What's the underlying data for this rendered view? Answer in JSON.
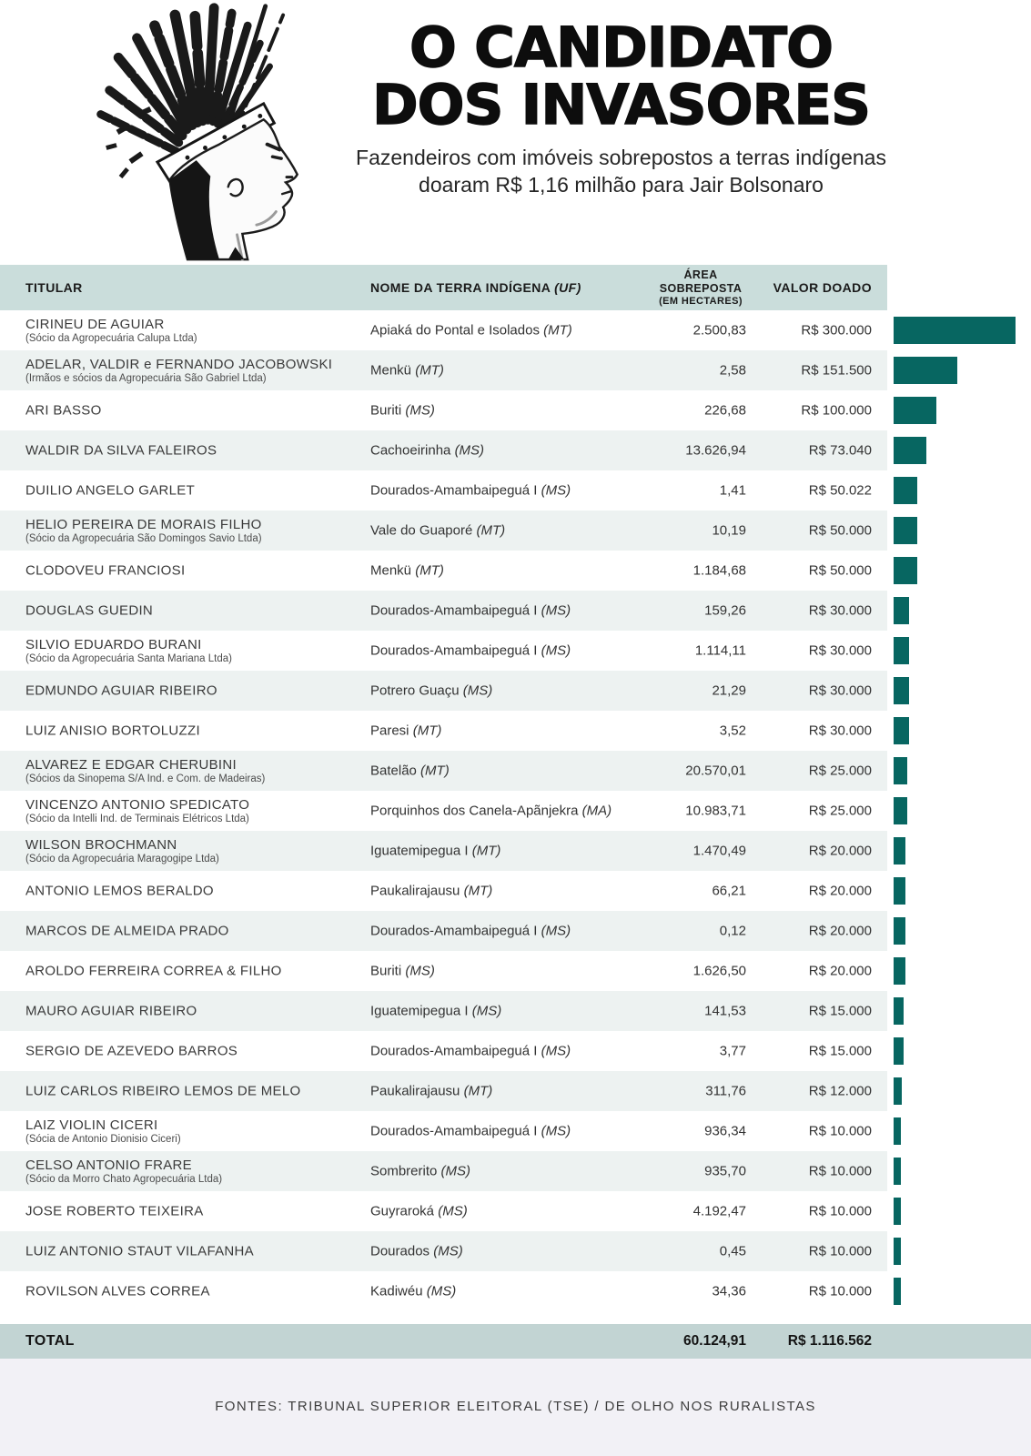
{
  "header": {
    "title_line1": "O CANDIDATO",
    "title_line2": "DOS INVASORES",
    "subtitle_line1": "Fazendeiros com imóveis sobrepostos a terras indígenas",
    "subtitle_line2": "doaram R$ 1,16 milhão para Jair Bolsonaro"
  },
  "table": {
    "col_titular": "TITULAR",
    "col_terra": "NOME DA TERRA INDÍGENA",
    "col_terra_uf": "(UF)",
    "col_area_l1": "ÁREA",
    "col_area_l2": "SOBREPOSTA",
    "col_area_l3": "(EM HECTARES)",
    "col_valor": "VALOR DOADO",
    "rows": [
      {
        "titular": "CIRINEU DE AGUIAR",
        "subtitle": "(Sócio da Agropecuária Calupa Ltda)",
        "terra": "Apiaká do Pontal e Isolados",
        "uf": "(MT)",
        "area": "2.500,83",
        "valor": "R$ 300.000"
      },
      {
        "titular": "ADELAR, VALDIR e FERNANDO JACOBOWSKI",
        "subtitle": "(Irmãos e sócios da Agropecuária São Gabriel Ltda)",
        "terra": "Menkü",
        "uf": "(MT)",
        "area": "2,58",
        "valor": "R$ 151.500"
      },
      {
        "titular": "ARI BASSO",
        "subtitle": "",
        "terra": "Buriti",
        "uf": "(MS)",
        "area": "226,68",
        "valor": "R$ 100.000"
      },
      {
        "titular": "WALDIR DA SILVA FALEIROS",
        "subtitle": "",
        "terra": "Cachoeirinha",
        "uf": "(MS)",
        "area": "13.626,94",
        "valor": "R$ 73.040"
      },
      {
        "titular": "DUILIO ANGELO GARLET",
        "subtitle": "",
        "terra": "Dourados-Amambaipeguá I",
        "uf": "(MS)",
        "area": "1,41",
        "valor": "R$ 50.022"
      },
      {
        "titular": "HELIO PEREIRA DE MORAIS FILHO",
        "subtitle": "(Sócio da Agropecuária São Domingos Savio Ltda)",
        "terra": "Vale do Guaporé",
        "uf": "(MT)",
        "area": "10,19",
        "valor": "R$ 50.000"
      },
      {
        "titular": "CLODOVEU FRANCIOSI",
        "subtitle": "",
        "terra": "Menkü",
        "uf": "(MT)",
        "area": "1.184,68",
        "valor": "R$ 50.000"
      },
      {
        "titular": "DOUGLAS GUEDIN",
        "subtitle": "",
        "terra": "Dourados-Amambaipeguá I",
        "uf": "(MS)",
        "area": "159,26",
        "valor": "R$ 30.000"
      },
      {
        "titular": "SILVIO EDUARDO BURANI",
        "subtitle": "(Sócio da Agropecuária Santa Mariana Ltda)",
        "terra": "Dourados-Amambaipeguá I",
        "uf": "(MS)",
        "area": "1.114,11",
        "valor": "R$ 30.000"
      },
      {
        "titular": "EDMUNDO AGUIAR RIBEIRO",
        "subtitle": "",
        "terra": "Potrero Guaçu",
        "uf": "(MS)",
        "area": "21,29",
        "valor": "R$ 30.000"
      },
      {
        "titular": "LUIZ ANISIO BORTOLUZZI",
        "subtitle": "",
        "terra": "Paresi",
        "uf": "(MT)",
        "area": "3,52",
        "valor": "R$ 30.000"
      },
      {
        "titular": "ALVAREZ E EDGAR CHERUBINI",
        "subtitle": "(Sócios da Sinopema S/A Ind. e Com. de Madeiras)",
        "terra": "Batelão",
        "uf": "(MT)",
        "area": "20.570,01",
        "valor": "R$ 25.000"
      },
      {
        "titular": "VINCENZO ANTONIO SPEDICATO",
        "subtitle": "(Sócio da Intelli Ind. de Terminais Elétricos Ltda)",
        "terra": "Porquinhos dos Canela-Apãnjekra",
        "uf": "(MA)",
        "area": "10.983,71",
        "valor": "R$ 25.000"
      },
      {
        "titular": "WILSON BROCHMANN",
        "subtitle": "(Sócio da Agropecuária Maragogipe Ltda)",
        "terra": "Iguatemipegua I",
        "uf": "(MT)",
        "area": "1.470,49",
        "valor": "R$ 20.000"
      },
      {
        "titular": "ANTONIO LEMOS BERALDO",
        "subtitle": "",
        "terra": "Paukalirajausu",
        "uf": "(MT)",
        "area": "66,21",
        "valor": "R$ 20.000"
      },
      {
        "titular": "MARCOS DE ALMEIDA PRADO",
        "subtitle": "",
        "terra": "Dourados-Amambaipeguá I",
        "uf": "(MS)",
        "area": "0,12",
        "valor": "R$ 20.000"
      },
      {
        "titular": "AROLDO FERREIRA CORREA & FILHO",
        "subtitle": "",
        "terra": "Buriti",
        "uf": "(MS)",
        "area": "1.626,50",
        "valor": "R$ 20.000"
      },
      {
        "titular": "MAURO AGUIAR RIBEIRO",
        "subtitle": "",
        "terra": "Iguatemipegua I",
        "uf": "(MS)",
        "area": "141,53",
        "valor": "R$ 15.000"
      },
      {
        "titular": "SERGIO DE AZEVEDO BARROS",
        "subtitle": "",
        "terra": "Dourados-Amambaipeguá I",
        "uf": "(MS)",
        "area": "3,77",
        "valor": "R$ 15.000"
      },
      {
        "titular": "LUIZ CARLOS RIBEIRO LEMOS DE MELO",
        "subtitle": "",
        "terra": "Paukalirajausu",
        "uf": "(MT)",
        "area": "311,76",
        "valor": "R$ 12.000"
      },
      {
        "titular": "LAIZ VIOLIN CICERI",
        "subtitle": "(Sócia de Antonio Dionisio Ciceri)",
        "terra": "Dourados-Amambaipeguá I",
        "uf": "(MS)",
        "area": "936,34",
        "valor": "R$ 10.000"
      },
      {
        "titular": "CELSO ANTONIO FRARE",
        "subtitle": "(Sócio da Morro Chato Agropecuária Ltda)",
        "terra": "Sombrerito",
        "uf": "(MS)",
        "area": "935,70",
        "valor": "R$ 10.000"
      },
      {
        "titular": "JOSE ROBERTO TEIXEIRA",
        "subtitle": "",
        "terra": "Guyraroká",
        "uf": "(MS)",
        "area": "4.192,47",
        "valor": "R$ 10.000"
      },
      {
        "titular": "LUIZ ANTONIO STAUT VILAFANHA",
        "subtitle": "",
        "terra": "Dourados",
        "uf": "(MS)",
        "area": "0,45",
        "valor": "R$ 10.000"
      },
      {
        "titular": "ROVILSON ALVES CORREA",
        "subtitle": "",
        "terra": "Kadiwéu",
        "uf": "(MS)",
        "area": "34,36",
        "valor": "R$ 10.000"
      }
    ],
    "total": {
      "label": "TOTAL",
      "area": "60.124,91",
      "valor": "R$ 1.116.562"
    }
  },
  "chart_data": {
    "type": "bar",
    "orientation": "horizontal",
    "title": "VALOR DOADO",
    "unit": "BRL",
    "xlim": [
      0,
      300000
    ],
    "categories": [
      "CIRINEU DE AGUIAR",
      "ADELAR, VALDIR e FERNANDO JACOBOWSKI",
      "ARI BASSO",
      "WALDIR DA SILVA FALEIROS",
      "DUILIO ANGELO GARLET",
      "HELIO PEREIRA DE MORAIS FILHO",
      "CLODOVEU FRANCIOSI",
      "DOUGLAS GUEDIN",
      "SILVIO EDUARDO BURANI",
      "EDMUNDO AGUIAR RIBEIRO",
      "LUIZ ANISIO BORTOLUZZI",
      "ALVAREZ E EDGAR CHERUBINI",
      "VINCENZO ANTONIO SPEDICATO",
      "WILSON BROCHMANN",
      "ANTONIO LEMOS BERALDO",
      "MARCOS DE ALMEIDA PRADO",
      "AROLDO FERREIRA CORREA & FILHO",
      "MAURO AGUIAR RIBEIRO",
      "SERGIO DE AZEVEDO BARROS",
      "LUIZ CARLOS RIBEIRO LEMOS DE MELO",
      "LAIZ VIOLIN CICERI",
      "CELSO ANTONIO FRARE",
      "JOSE ROBERTO TEIXEIRA",
      "LUIZ ANTONIO STAUT VILAFANHA",
      "ROVILSON ALVES CORREA"
    ],
    "values": [
      300000,
      151500,
      100000,
      73040,
      50022,
      50000,
      50000,
      30000,
      30000,
      30000,
      30000,
      25000,
      25000,
      20000,
      20000,
      20000,
      20000,
      15000,
      15000,
      12000,
      10000,
      10000,
      10000,
      10000,
      10000
    ],
    "area_hectares": [
      2500.83,
      2.58,
      226.68,
      13626.94,
      1.41,
      10.19,
      1184.68,
      159.26,
      1114.11,
      21.29,
      3.52,
      20570.01,
      10983.71,
      1470.49,
      66.21,
      0.12,
      1626.5,
      141.53,
      3.77,
      311.76,
      936.34,
      935.7,
      4192.47,
      0.45,
      34.36
    ],
    "totals": {
      "area_hectares": 60124.91,
      "valor_brl": 1116562
    }
  },
  "footer": {
    "sources": "FONTES: TRIBUNAL SUPERIOR ELEITORAL (TSE) / DE OLHO NOS RURALISTAS"
  },
  "colors": {
    "bar": "#076661",
    "header_band": "#cadddb",
    "stripe": "#edf2f1",
    "total_band": "#c2d4d3",
    "footer_band": "#f2f1f6"
  }
}
